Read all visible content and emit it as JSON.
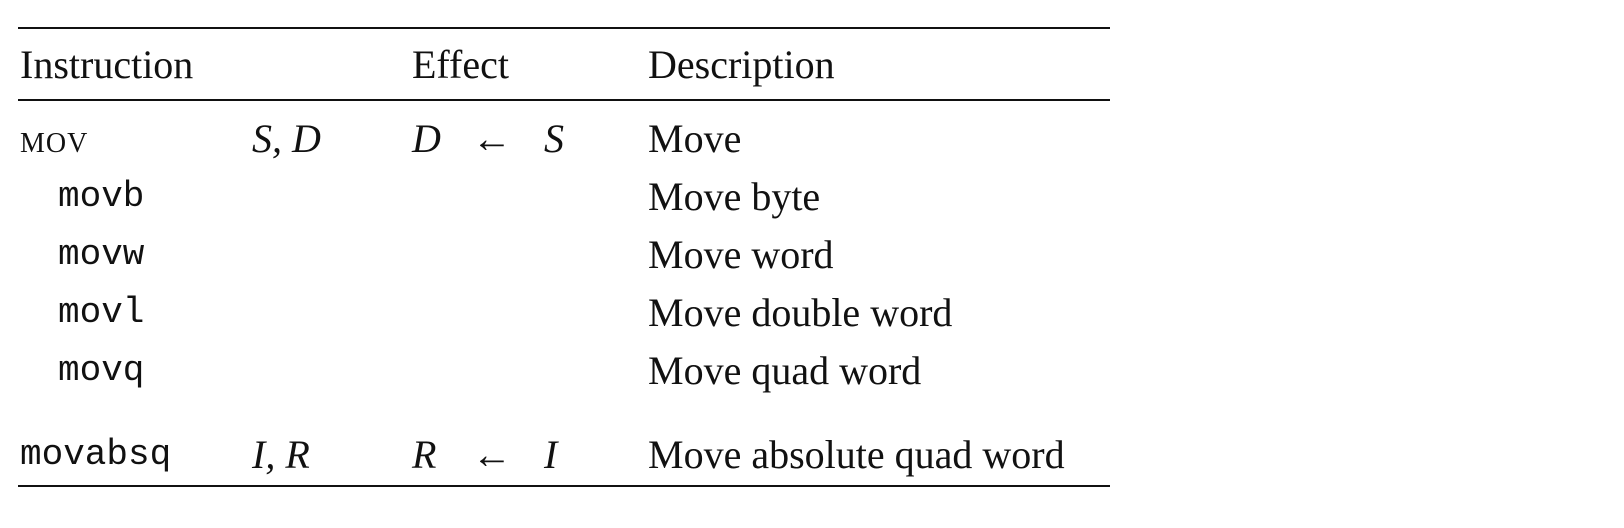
{
  "headers": {
    "instruction": "Instruction",
    "effect": "Effect",
    "description": "Description"
  },
  "rows": [
    {
      "instruction": "MOV",
      "operands": "S, D",
      "effect_dst": "D",
      "effect_arrow": "←",
      "effect_src": "S",
      "description": "Move"
    },
    {
      "instruction": "movb",
      "description": "Move byte"
    },
    {
      "instruction": "movw",
      "description": "Move word"
    },
    {
      "instruction": "movl",
      "description": "Move double word"
    },
    {
      "instruction": "movq",
      "description": "Move quad word"
    },
    {
      "instruction": "movabsq",
      "operands": "I, R",
      "effect_dst": "R",
      "effect_arrow": "←",
      "effect_src": "I",
      "description": "Move absolute quad word"
    }
  ]
}
